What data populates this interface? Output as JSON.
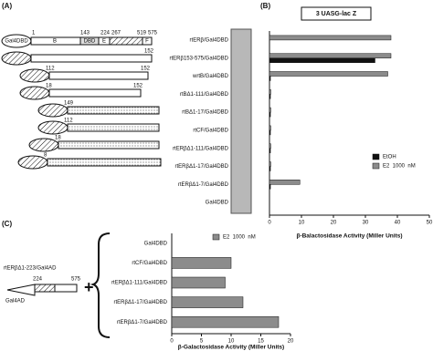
{
  "panel_a": {
    "label": "(A)",
    "header": {
      "gal4": "Gal4DBD",
      "numbers": [
        "1",
        "143",
        "224",
        "267",
        "519",
        "575"
      ],
      "domains": [
        "B",
        "DBD",
        "E",
        "F"
      ]
    },
    "constructs": [
      {
        "numbers": [
          "152"
        ]
      },
      {
        "numbers": [
          "112",
          "152"
        ]
      },
      {
        "numbers": [
          "18",
          "152"
        ]
      },
      {
        "numbers": [
          "149"
        ]
      },
      {
        "numbers": [
          "112"
        ]
      },
      {
        "numbers": [
          "18"
        ]
      },
      {
        "numbers": [
          "8"
        ]
      }
    ]
  },
  "panel_c_left": {
    "label": "(C)",
    "construct": "rtERβΔ1-223/Gal4AD",
    "numbers": [
      "224",
      "575"
    ],
    "gal4ad": "Gal4AD",
    "plus": "+"
  },
  "chart_data": [
    {
      "type": "hbar",
      "label": "(B)",
      "title": "3 UASG-lac Z",
      "x_label": "β-Balactosidase Activity (Miller Units)",
      "categories": [
        "rtERβ/Gal4DBD",
        "rtERβ153-575/Gal4DBD",
        "wrtB/Gal4DBD",
        "rtBΔ1-111/Gal4DBD",
        "rtBΔ1-17/Gal4DBD",
        "rtCF/Gal4DBD",
        "rtERβΔ1-111/Gal4DBD",
        "rtERβΔ1-17/Gal4DBD",
        "rtERβΔ1-7/Gal4DBD",
        "Gal4DBD"
      ],
      "series": [
        {
          "name": "EtOH",
          "color": "#111111",
          "values": [
            0,
            33,
            0.3,
            0.3,
            0.3,
            0.3,
            0.3,
            0.3,
            0.3,
            0
          ]
        },
        {
          "name": "E2  1000  nM",
          "color": "#8c8c8c",
          "values": [
            38,
            38,
            37,
            0.4,
            0.4,
            0.4,
            0.4,
            0.4,
            9.5,
            0
          ]
        }
      ],
      "xlim": [
        0,
        50
      ],
      "xticks": [
        0,
        10,
        20,
        30,
        40,
        50
      ],
      "legend": "lower right"
    },
    {
      "type": "hbar",
      "x_label": "β-Galactosidase Activity (Miller Units)",
      "categories": [
        "Gal4DBD",
        "rtCF/Gal4DBD",
        "rtERβΔ1-111/Gal4DBD",
        "rtERβΔ1-17/Gal4DBD",
        "rtERβΔ1-7/Gal4DBD"
      ],
      "series": [
        {
          "name": "E2  1000  nM",
          "color": "#8c8c8c",
          "values": [
            0,
            10,
            9,
            12,
            18
          ]
        }
      ],
      "xlim": [
        0,
        20
      ],
      "xticks": [
        0,
        5,
        10,
        15,
        20
      ],
      "legend": "upper center"
    }
  ]
}
